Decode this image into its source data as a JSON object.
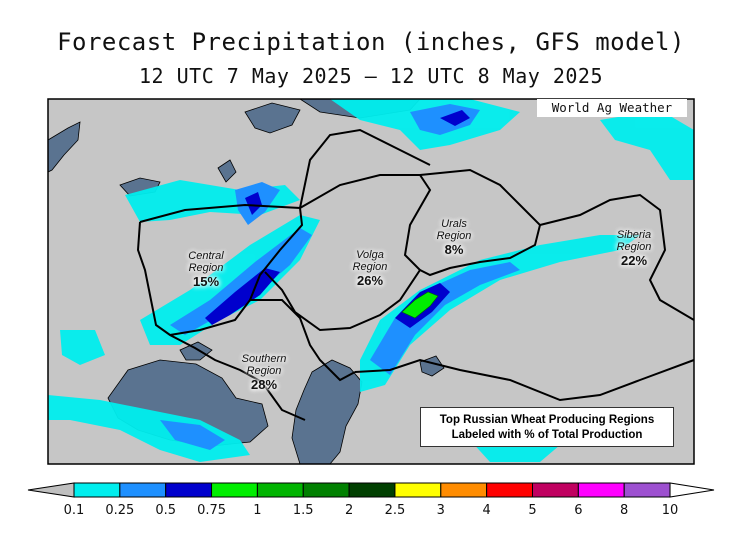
{
  "title": {
    "line1": "Forecast Precipitation (inches, GFS model)",
    "line2": "12 UTC 7 May 2025 – 12 UTC 8 May 2025"
  },
  "credit": "World Ag Weather",
  "info_box": {
    "line1": "Top Russian Wheat Producing Regions",
    "line2": "Labeled with % of Total Production"
  },
  "regions": [
    {
      "name_line1": "Central",
      "name_line2": "Region",
      "share": "15%"
    },
    {
      "name_line1": "Volga",
      "name_line2": "Region",
      "share": "26%"
    },
    {
      "name_line1": "Urals",
      "name_line2": "Region",
      "share": "8%"
    },
    {
      "name_line1": "Siberia",
      "name_line2": "Region",
      "share": "22%"
    },
    {
      "name_line1": "Southern",
      "name_line2": "Region",
      "share": "28%"
    }
  ],
  "legend": {
    "ticks": [
      "0.1",
      "0.25",
      "0.5",
      "0.75",
      "1",
      "1.5",
      "2",
      "2.5",
      "3",
      "4",
      "5",
      "6",
      "8",
      "10"
    ],
    "colors": [
      "#c0c0c0",
      "#00eeee",
      "#1e90ff",
      "#0000cd",
      "#00ee00",
      "#00b400",
      "#008000",
      "#004000",
      "#ffff00",
      "#ff8c00",
      "#ff0000",
      "#c00060",
      "#ff00ff",
      "#9d50d0",
      "#ffffff"
    ]
  },
  "map_colors": {
    "land": "#c6c6c6",
    "water": "#5a7390",
    "boundary": "#000000"
  }
}
